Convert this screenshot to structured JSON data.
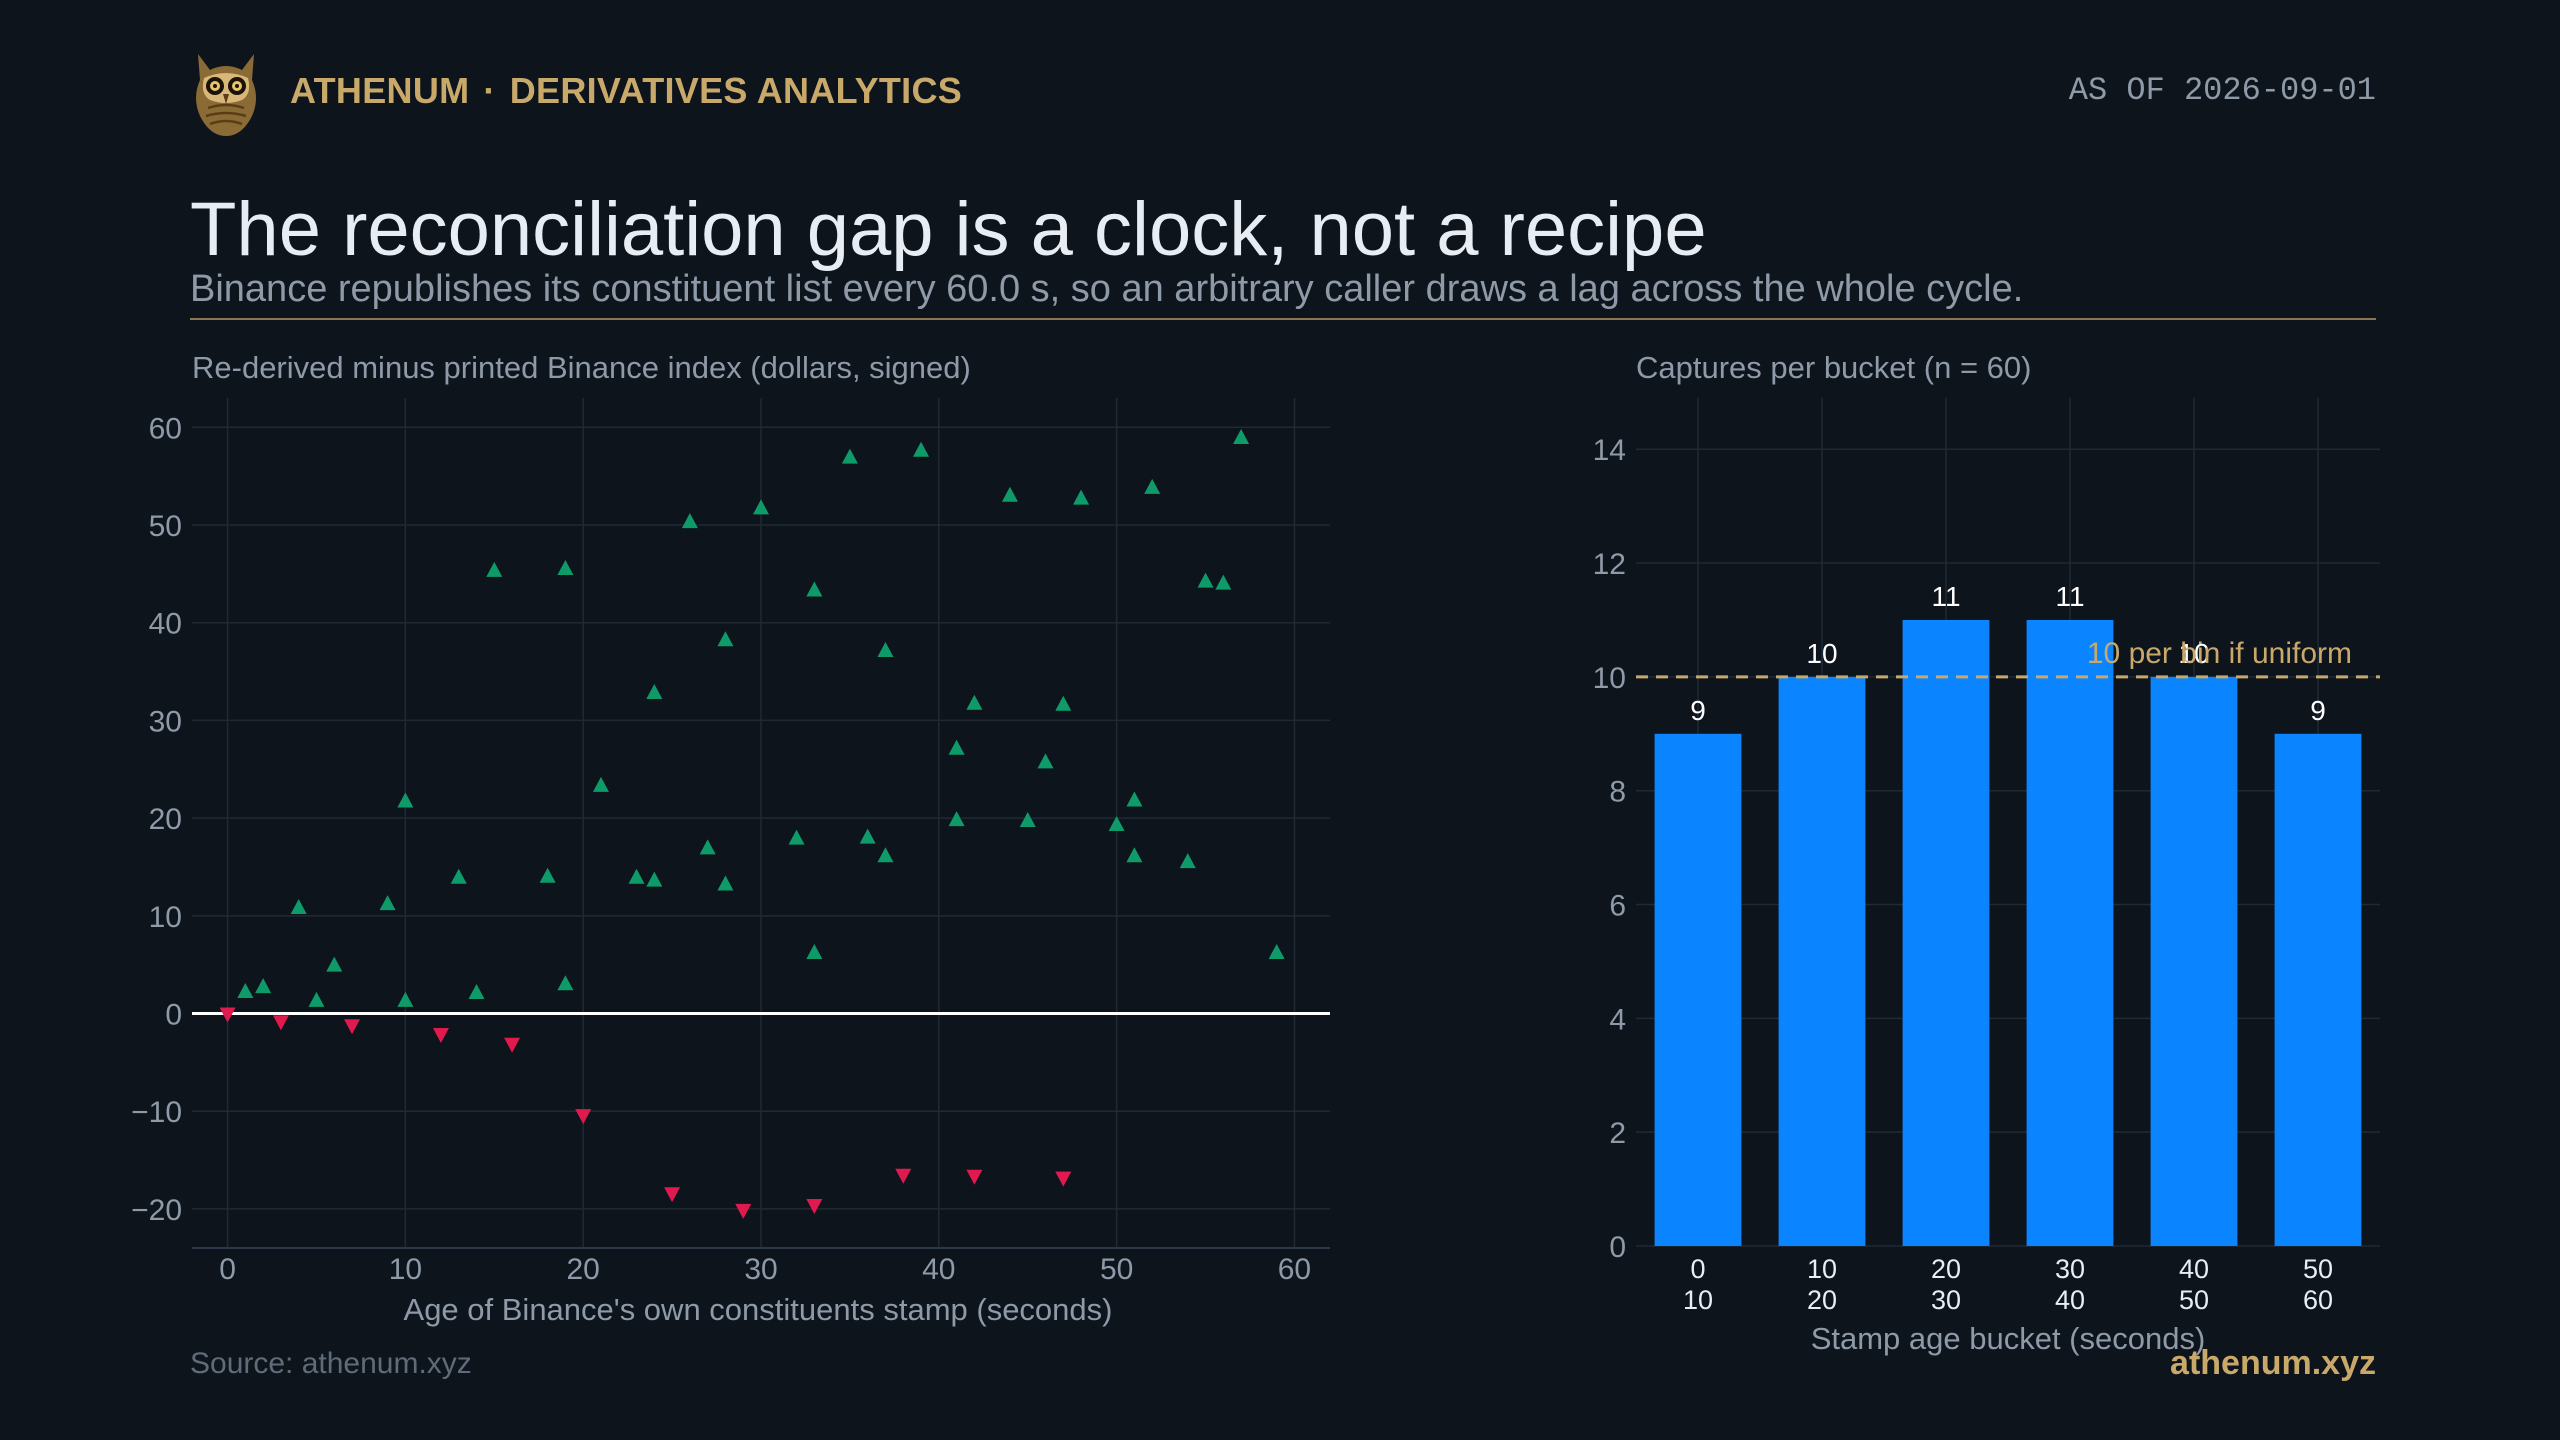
{
  "header": {
    "brand_name": "ATHENUM",
    "brand_separator": "·",
    "brand_section": "DERIVATIVES ANALYTICS",
    "as_of": "AS OF 2026-09-01"
  },
  "title": "The reconciliation gap is a clock, not a recipe",
  "subtitle": "Binance republishes its constituent list every 60.0 s, so an arbitrary caller draws a lag across the whole cycle.",
  "footer": {
    "source": "Source: athenum.xyz",
    "brand": "athenum.xyz"
  },
  "colors": {
    "background": "#0d141c",
    "gold": "#c9a96a",
    "positive": "#0f9b69",
    "negative": "#e0194f",
    "bar": "#0a84ff",
    "grid": "#1f2a35",
    "zero_line": "#ffffff"
  },
  "chart_data": [
    {
      "type": "scatter",
      "title": "Re-derived minus printed Binance index (dollars, signed)",
      "xlabel": "Age of Binance's own constituents stamp (seconds)",
      "ylabel": "",
      "xlim": [
        -2,
        62
      ],
      "ylim": [
        -24,
        63
      ],
      "xticks": [
        0,
        10,
        20,
        30,
        40,
        50,
        60
      ],
      "yticks": [
        -20,
        -10,
        0,
        10,
        20,
        30,
        40,
        50,
        60
      ],
      "grid": true,
      "zero_line": true,
      "series": [
        {
          "marker": "triangle-up",
          "color": "#0f9b69",
          "points": [
            [
              1,
              2.2
            ],
            [
              2,
              2.7
            ],
            [
              4,
              10.8
            ],
            [
              5,
              1.3
            ],
            [
              6,
              4.9
            ],
            [
              9,
              11.2
            ],
            [
              10,
              21.7
            ],
            [
              10,
              1.3
            ],
            [
              13,
              13.9
            ],
            [
              14,
              2.1
            ],
            [
              15,
              45.3
            ],
            [
              18,
              14.0
            ],
            [
              19,
              45.5
            ],
            [
              19,
              3.0
            ],
            [
              21,
              23.3
            ],
            [
              23,
              13.9
            ],
            [
              24,
              13.6
            ],
            [
              24,
              32.8
            ],
            [
              26,
              50.3
            ],
            [
              27,
              16.9
            ],
            [
              28,
              38.2
            ],
            [
              28,
              13.2
            ],
            [
              30,
              51.7
            ],
            [
              32,
              17.9
            ],
            [
              33,
              43.3
            ],
            [
              33,
              6.2
            ],
            [
              35,
              56.9
            ],
            [
              36,
              18.0
            ],
            [
              37,
              37.1
            ],
            [
              37,
              16.1
            ],
            [
              39,
              57.6
            ],
            [
              41,
              27.1
            ],
            [
              41,
              19.8
            ],
            [
              42,
              31.7
            ],
            [
              44,
              53.0
            ],
            [
              45,
              19.7
            ],
            [
              46,
              25.7
            ],
            [
              47,
              31.6
            ],
            [
              48,
              52.7
            ],
            [
              50,
              19.3
            ],
            [
              51,
              21.8
            ],
            [
              51,
              16.1
            ],
            [
              52,
              53.8
            ],
            [
              54,
              15.5
            ],
            [
              55,
              44.2
            ],
            [
              56,
              44.0
            ],
            [
              57,
              58.9
            ],
            [
              59,
              6.2
            ]
          ]
        },
        {
          "marker": "triangle-down",
          "color": "#e0194f",
          "points": [
            [
              0,
              0.0
            ],
            [
              3,
              -0.8
            ],
            [
              7,
              -1.2
            ],
            [
              12,
              -2.1
            ],
            [
              16,
              -3.1
            ],
            [
              20,
              -10.4
            ],
            [
              25,
              -18.4
            ],
            [
              29,
              -20.1
            ],
            [
              33,
              -19.6
            ],
            [
              38,
              -16.5
            ],
            [
              42,
              -16.6
            ],
            [
              47,
              -16.8
            ]
          ]
        }
      ]
    },
    {
      "type": "bar",
      "title": "Captures per bucket (n = 60)",
      "xlabel": "Stamp age bucket (seconds)",
      "ylabel": "",
      "categories": [
        [
          "0",
          "10"
        ],
        [
          "10",
          "20"
        ],
        [
          "20",
          "30"
        ],
        [
          "30",
          "40"
        ],
        [
          "40",
          "50"
        ],
        [
          "50",
          "60"
        ]
      ],
      "values": [
        9,
        10,
        11,
        11,
        10,
        9
      ],
      "ylim": [
        0,
        14.9
      ],
      "yticks": [
        0,
        2,
        4,
        6,
        8,
        10,
        12,
        14
      ],
      "reference_line": {
        "value": 10,
        "label": "10 per bin if uniform"
      },
      "grid": true
    }
  ]
}
